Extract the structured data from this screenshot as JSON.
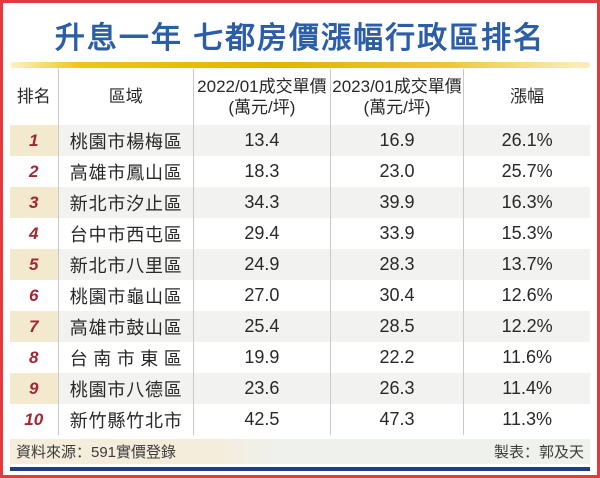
{
  "title": "升息一年 七都房價漲幅行政區排名",
  "colors": {
    "frame_border": "#e13b3d",
    "title_blue": "#2b5ea7",
    "gold_divider": "#e3b300",
    "rank_red": "#a32633",
    "odd_row_gray": "#f2f2f0",
    "odd_rank_cream": "#f3e9cf",
    "navy_divider": "#1e3e7f"
  },
  "table": {
    "headers": [
      {
        "line1": "排名",
        "line2": ""
      },
      {
        "line1": "區域",
        "line2": ""
      },
      {
        "line1": "2022/01成交單價",
        "line2": "(萬元/坪)"
      },
      {
        "line1": "2023/01成交單價",
        "line2": "(萬元/坪)"
      },
      {
        "line1": "漲幅",
        "line2": ""
      }
    ],
    "rows": [
      {
        "rank": "1",
        "region": "桃園市楊梅區",
        "price_2022": "13.4",
        "price_2023": "16.9",
        "change": "26.1%"
      },
      {
        "rank": "2",
        "region": "高雄市鳳山區",
        "price_2022": "18.3",
        "price_2023": "23.0",
        "change": "25.7%"
      },
      {
        "rank": "3",
        "region": "新北市汐止區",
        "price_2022": "34.3",
        "price_2023": "39.9",
        "change": "16.3%"
      },
      {
        "rank": "4",
        "region": "台中市西屯區",
        "price_2022": "29.4",
        "price_2023": "33.9",
        "change": "15.3%"
      },
      {
        "rank": "5",
        "region": "新北市八里區",
        "price_2022": "24.9",
        "price_2023": "28.3",
        "change": "13.7%"
      },
      {
        "rank": "6",
        "region": "桃園市龜山區",
        "price_2022": "27.0",
        "price_2023": "30.4",
        "change": "12.6%"
      },
      {
        "rank": "7",
        "region": "高雄市鼓山區",
        "price_2022": "25.4",
        "price_2023": "28.5",
        "change": "12.2%"
      },
      {
        "rank": "8",
        "region": "台南市東區",
        "price_2022": "19.9",
        "price_2023": "22.2",
        "change": "11.6%"
      },
      {
        "rank": "9",
        "region": "桃園市八德區",
        "price_2022": "23.6",
        "price_2023": "26.3",
        "change": "11.4%"
      },
      {
        "rank": "10",
        "region": "新竹縣竹北市",
        "price_2022": "42.5",
        "price_2023": "47.3",
        "change": "11.3%"
      }
    ]
  },
  "footer": {
    "source": "資料來源：591實價登錄",
    "credit": "製表：郭及天"
  },
  "chart_data": {
    "type": "table",
    "title": "升息一年 七都房價漲幅行政區排名",
    "columns": [
      "排名",
      "區域",
      "2022/01成交單價(萬元/坪)",
      "2023/01成交單價(萬元/坪)",
      "漲幅"
    ],
    "rows": [
      [
        1,
        "桃園市楊梅區",
        13.4,
        16.9,
        "26.1%"
      ],
      [
        2,
        "高雄市鳳山區",
        18.3,
        23.0,
        "25.7%"
      ],
      [
        3,
        "新北市汐止區",
        34.3,
        39.9,
        "16.3%"
      ],
      [
        4,
        "台中市西屯區",
        29.4,
        33.9,
        "15.3%"
      ],
      [
        5,
        "新北市八里區",
        24.9,
        28.3,
        "13.7%"
      ],
      [
        6,
        "桃園市龜山區",
        27.0,
        30.4,
        "12.6%"
      ],
      [
        7,
        "高雄市鼓山區",
        25.4,
        28.5,
        "12.2%"
      ],
      [
        8,
        "台南市東區",
        19.9,
        22.2,
        "11.6%"
      ],
      [
        9,
        "桃園市八德區",
        23.6,
        26.3,
        "11.4%"
      ],
      [
        10,
        "新竹縣竹北市",
        42.5,
        47.3,
        "11.3%"
      ]
    ],
    "source": "591實價登錄",
    "credited_to": "郭及天"
  }
}
